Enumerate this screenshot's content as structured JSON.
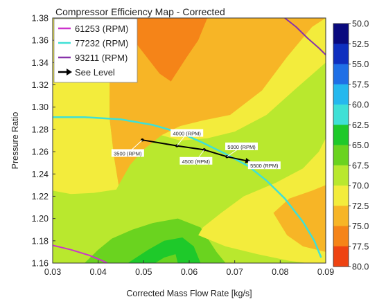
{
  "chart_data": {
    "type": "heatmap",
    "title": "Compressor Efficiency Map - Corrected",
    "xlabel": "Corrected Mass Flow Rate [kg/s]",
    "ylabel": "Pressure Ratio",
    "xlim": [
      0.03,
      0.09
    ],
    "ylim": [
      1.16,
      1.38
    ],
    "x_ticks": [
      "0.03",
      "0.04",
      "0.05",
      "0.06",
      "0.07",
      "0.08",
      "0.09"
    ],
    "y_ticks": [
      "1.16",
      "1.18",
      "1.20",
      "1.22",
      "1.24",
      "1.26",
      "1.28",
      "1.30",
      "1.32",
      "1.34",
      "1.36",
      "1.38"
    ],
    "grid": false,
    "legend_position": "top-left",
    "colorbar": {
      "levels": [
        "50.0",
        "52.5",
        "55.0",
        "57.5",
        "60.0",
        "62.5",
        "65.0",
        "67.5",
        "70.0",
        "72.5",
        "75.0",
        "77.5",
        "80.0"
      ],
      "colors": [
        "#0a0a7e",
        "#0f2fbf",
        "#1f6fe6",
        "#25b8ee",
        "#3fe0d6",
        "#1ec92a",
        "#6ad31f",
        "#b9e82e",
        "#f3ec3c",
        "#f7b526",
        "#f58418",
        "#ee4312",
        "#cc0000"
      ]
    },
    "efficiency_regions": [
      {
        "level": "75.0",
        "color": "#f58418",
        "polygon": [
          [
            0.044,
            1.38
          ],
          [
            0.0535,
            1.33
          ],
          [
            0.056,
            1.323
          ],
          [
            0.0595,
            1.345
          ],
          [
            0.062,
            1.36
          ],
          [
            0.064,
            1.38
          ]
        ]
      },
      {
        "level": "72.5",
        "color": "#f7b526",
        "polygon": [
          [
            0.0445,
            1.23
          ],
          [
            0.047,
            1.248
          ],
          [
            0.05,
            1.262
          ],
          [
            0.054,
            1.275
          ],
          [
            0.058,
            1.283
          ],
          [
            0.063,
            1.288
          ],
          [
            0.069,
            1.293
          ],
          [
            0.076,
            1.315
          ],
          [
            0.0815,
            1.345
          ],
          [
            0.087,
            1.372
          ],
          [
            0.09,
            1.38
          ],
          [
            0.064,
            1.38
          ],
          [
            0.062,
            1.36
          ],
          [
            0.0595,
            1.345
          ],
          [
            0.056,
            1.323
          ],
          [
            0.0535,
            1.33
          ],
          [
            0.044,
            1.38
          ],
          [
            0.0425,
            1.38
          ],
          [
            0.0425,
            1.29
          ],
          [
            0.0435,
            1.255
          ]
        ]
      },
      {
        "level": "72.5",
        "color": "#f7b526",
        "polygon": [
          [
            0.09,
            1.23
          ],
          [
            0.087,
            1.225
          ],
          [
            0.082,
            1.218
          ],
          [
            0.0785,
            1.205
          ],
          [
            0.0815,
            1.185
          ],
          [
            0.085,
            1.175
          ],
          [
            0.09,
            1.17
          ]
        ]
      },
      {
        "level": "75.0",
        "color": "#f58418",
        "polygon": [
          [
            0.09,
            1.216
          ],
          [
            0.0855,
            1.207
          ],
          [
            0.0835,
            1.195
          ],
          [
            0.0865,
            1.183
          ],
          [
            0.09,
            1.178
          ]
        ]
      },
      {
        "level": "70.0",
        "color": "#f3ec3c",
        "polygon": [
          [
            0.0348,
            1.38
          ],
          [
            0.039,
            1.336
          ],
          [
            0.044,
            1.3
          ],
          [
            0.047,
            1.29
          ],
          [
            0.052,
            1.277
          ],
          [
            0.058,
            1.27
          ],
          [
            0.064,
            1.272
          ],
          [
            0.07,
            1.278
          ],
          [
            0.077,
            1.293
          ],
          [
            0.083,
            1.315
          ],
          [
            0.09,
            1.34
          ],
          [
            0.09,
            1.38
          ]
        ]
      },
      {
        "level": "70.0",
        "color": "#f3ec3c",
        "polygon": [
          [
            0.03,
            1.225
          ],
          [
            0.034,
            1.222
          ],
          [
            0.039,
            1.223
          ],
          [
            0.044,
            1.226
          ],
          [
            0.0445,
            1.23
          ],
          [
            0.0435,
            1.255
          ],
          [
            0.0425,
            1.29
          ],
          [
            0.0425,
            1.38
          ],
          [
            0.0348,
            1.38
          ],
          [
            0.03,
            1.38
          ]
        ]
      },
      {
        "level": "70.0",
        "color": "#f3ec3c",
        "polygon": [
          [
            0.09,
            1.272
          ],
          [
            0.0885,
            1.26
          ],
          [
            0.085,
            1.245
          ],
          [
            0.079,
            1.232
          ],
          [
            0.072,
            1.22
          ],
          [
            0.067,
            1.205
          ],
          [
            0.063,
            1.192
          ],
          [
            0.062,
            1.185
          ],
          [
            0.068,
            1.175
          ],
          [
            0.075,
            1.168
          ],
          [
            0.082,
            1.162
          ],
          [
            0.086,
            1.16
          ],
          [
            0.09,
            1.16
          ]
        ]
      },
      {
        "level": "67.5",
        "color": "#b9e82e",
        "polygon": [
          [
            0.03,
            1.16
          ],
          [
            0.037,
            1.16
          ],
          [
            0.04,
            1.172
          ],
          [
            0.043,
            1.182
          ],
          [
            0.0475,
            1.19
          ],
          [
            0.052,
            1.196
          ],
          [
            0.0575,
            1.2
          ],
          [
            0.0625,
            1.192
          ],
          [
            0.066,
            1.17
          ],
          [
            0.068,
            1.16
          ],
          [
            0.09,
            1.16
          ],
          [
            0.09,
            1.38
          ],
          [
            0.03,
            1.38
          ]
        ]
      },
      {
        "level": "65.0",
        "color": "#6ad31f",
        "polygon": [
          [
            0.03,
            1.16
          ],
          [
            0.0465,
            1.16
          ],
          [
            0.051,
            1.172
          ],
          [
            0.0545,
            1.18
          ],
          [
            0.0585,
            1.183
          ],
          [
            0.061,
            1.175
          ],
          [
            0.0625,
            1.16
          ],
          [
            0.09,
            1.16
          ],
          [
            0.09,
            1.38
          ],
          [
            0.03,
            1.38
          ]
        ]
      },
      {
        "level": "62.5",
        "color": "#1ec92a",
        "polygon": [
          [
            0.03,
            1.16
          ],
          [
            0.0525,
            1.16
          ],
          [
            0.0545,
            1.165
          ],
          [
            0.057,
            1.168
          ],
          [
            0.0575,
            1.16
          ],
          [
            0.09,
            1.16
          ],
          [
            0.09,
            1.38
          ],
          [
            0.03,
            1.38
          ]
        ]
      },
      {
        "level": "62.5",
        "color": "#1ec92a",
        "polygon": [
          [
            0.03,
            1.16
          ],
          [
            0.036,
            1.16
          ],
          [
            0.034,
            1.167
          ],
          [
            0.031,
            1.175
          ],
          [
            0.03,
            1.178
          ]
        ]
      },
      {
        "level": "60.0",
        "color": "#3fe0d6",
        "polygon": [
          [
            0.085,
            1.16
          ],
          [
            0.09,
            1.16
          ],
          [
            0.09,
            1.175
          ],
          [
            0.087,
            1.165
          ]
        ]
      },
      {
        "level": "57.5",
        "color": "#25b8ee",
        "polygon": [
          [
            0.087,
            1.16
          ],
          [
            0.09,
            1.16
          ],
          [
            0.09,
            1.168
          ]
        ]
      }
    ],
    "series": [
      {
        "name": "61253 (RPM)",
        "color": "#cc33cc",
        "width": 2,
        "points": [
          [
            0.03,
            1.176
          ],
          [
            0.034,
            1.172
          ],
          [
            0.038,
            1.167
          ],
          [
            0.041,
            1.162
          ],
          [
            0.042,
            1.16
          ]
        ]
      },
      {
        "name": "77232 (RPM)",
        "color": "#3fe0d6",
        "width": 2.5,
        "points": [
          [
            0.03,
            1.291
          ],
          [
            0.037,
            1.291
          ],
          [
            0.045,
            1.289
          ],
          [
            0.052,
            1.284
          ],
          [
            0.058,
            1.277
          ],
          [
            0.063,
            1.268
          ],
          [
            0.068,
            1.258
          ],
          [
            0.073,
            1.247
          ],
          [
            0.077,
            1.234
          ],
          [
            0.081,
            1.218
          ],
          [
            0.085,
            1.197
          ],
          [
            0.0875,
            1.18
          ],
          [
            0.089,
            1.165
          ]
        ]
      },
      {
        "name": "93211 (RPM)",
        "color": "#8833aa",
        "width": 2,
        "points": [
          [
            0.081,
            1.38
          ],
          [
            0.0835,
            1.372
          ],
          [
            0.086,
            1.362
          ],
          [
            0.0885,
            1.353
          ],
          [
            0.09,
            1.347
          ]
        ]
      },
      {
        "name": "See Level",
        "color": "#000000",
        "width": 2,
        "marker": true,
        "points": [
          [
            0.0497,
            1.2705
          ],
          [
            0.0573,
            1.2653
          ],
          [
            0.0633,
            1.2617
          ],
          [
            0.0683,
            1.2555
          ],
          [
            0.073,
            1.2515
          ]
        ]
      }
    ],
    "annotations": [
      {
        "text": "3500 (RPM)",
        "x": 0.0497,
        "y": 1.2705,
        "anchor_text": [
          0.0465,
          1.2585
        ]
      },
      {
        "text": "4000 (RPM)",
        "x": 0.0573,
        "y": 1.2653,
        "anchor_text": [
          0.0595,
          1.2765
        ]
      },
      {
        "text": "4500 (RPM)",
        "x": 0.0633,
        "y": 1.2617,
        "anchor_text": [
          0.0615,
          1.2515
        ]
      },
      {
        "text": "5000 (RPM)",
        "x": 0.0683,
        "y": 1.2555,
        "anchor_text": [
          0.0715,
          1.2645
        ]
      },
      {
        "text": "5500 (RPM)",
        "x": 0.073,
        "y": 1.2515,
        "anchor_text": [
          0.0765,
          1.2475
        ]
      }
    ]
  }
}
